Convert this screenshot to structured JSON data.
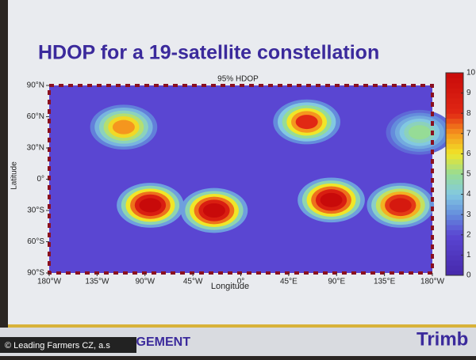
{
  "slide_title": "HDOP for a 19-satellite constellation",
  "footer": {
    "section": "AGEMENT",
    "logo": "Trimb",
    "credit": "© Leading Farmers CZ, a.s"
  },
  "chart_data": {
    "type": "heatmap",
    "title": "95% HDOP",
    "x_label": "Longitude",
    "y_label": "Latitude",
    "xlim": [
      -180,
      180
    ],
    "ylim": [
      -90,
      90
    ],
    "xticks": [
      {
        "value": -180,
        "label": "180°W"
      },
      {
        "value": -135,
        "label": "135°W"
      },
      {
        "value": -90,
        "label": "90°W"
      },
      {
        "value": -45,
        "label": "45°W"
      },
      {
        "value": 0,
        "label": "0°"
      },
      {
        "value": 45,
        "label": "45°E"
      },
      {
        "value": 90,
        "label": "90°E"
      },
      {
        "value": 135,
        "label": "135°E"
      },
      {
        "value": 180,
        "label": "180°W"
      }
    ],
    "yticks": [
      {
        "value": 90,
        "label": "90°N"
      },
      {
        "value": 60,
        "label": "60°N"
      },
      {
        "value": 30,
        "label": "30°N"
      },
      {
        "value": 0,
        "label": "0°"
      },
      {
        "value": -30,
        "label": "30°S"
      },
      {
        "value": -60,
        "label": "60°S"
      },
      {
        "value": -90,
        "label": "90°S"
      }
    ],
    "clim": [
      0,
      10
    ],
    "cticks": [
      0,
      1,
      2,
      3,
      4,
      5,
      6,
      7,
      8,
      9,
      10
    ],
    "base_value": 2,
    "hotspots": [
      {
        "lon": -110,
        "lat": 50,
        "value": 7
      },
      {
        "lon": -85,
        "lat": -25,
        "value": 10
      },
      {
        "lon": -25,
        "lat": -30,
        "value": 10
      },
      {
        "lon": 62,
        "lat": 55,
        "value": 8
      },
      {
        "lon": 85,
        "lat": -20,
        "value": 10
      },
      {
        "lon": 150,
        "lat": -25,
        "value": 9
      },
      {
        "lon": 168,
        "lat": 45,
        "value": 5
      }
    ]
  }
}
